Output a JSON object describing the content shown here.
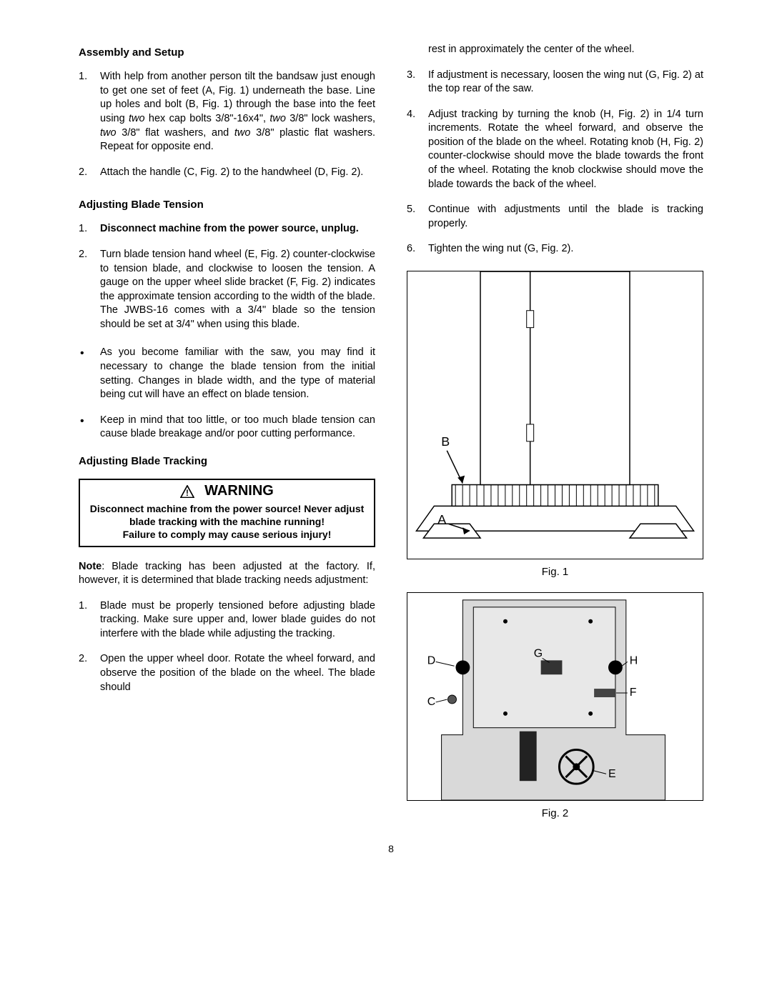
{
  "left": {
    "h1": "Assembly and Setup",
    "setup": [
      "With help from another person tilt the bandsaw just enough to get one set of feet (A, Fig. 1) underneath the base.  Line up holes and bolt (B, Fig. 1) through the base into the feet using <em>two</em> hex cap bolts 3/8\"-16x4\", <em>two</em> 3/8\" lock washers, <em>two</em> 3/8\" flat washers, and <em>two</em> 3/8\" plastic flat washers.  Repeat for opposite end.",
      "Attach the handle (C, Fig. 2) to the handwheel (D, Fig. 2)."
    ],
    "h2": "Adjusting Blade Tension",
    "tension_ol": [
      "<span class=\"bold\">Disconnect machine from the power source, unplug.</span>",
      "Turn blade tension hand wheel (E, Fig. 2) counter-clockwise to tension blade, and clockwise to loosen the tension.  A gauge on the upper wheel slide bracket (F, Fig. 2) indicates the approximate tension according to the width of the blade.  The JWBS-16 comes with a 3/4\" blade so the tension should be set at 3/4\" when using this blade."
    ],
    "tension_ul": [
      "As you become familiar with the saw, you may find it necessary to change the blade tension from the initial setting.  Changes in blade width, and the type of material being cut will have an effect on blade tension.",
      "Keep in mind that too little, or too much blade tension can cause blade breakage and/or poor cutting performance."
    ],
    "h3": "Adjusting Blade Tracking",
    "warning_title": "WARNING",
    "warning_body": "Disconnect machine from the power source! Never adjust blade tracking with the machine running!<br>Failure to comply may cause serious injury!",
    "note": "<span class=\"bold\">Note</span>: Blade tracking has been adjusted at the factory.  If, however, it is determined that blade tracking needs adjustment:",
    "tracking_ol_left": [
      "Blade must be properly tensioned before adjusting blade tracking.  Make sure upper and, lower blade guides do not interfere with the blade while adjusting the tracking.",
      "Open the upper wheel door.  Rotate the wheel forward, and observe the position of the blade on the wheel.  The blade should"
    ]
  },
  "right": {
    "cont": "rest in approximately the center of the wheel.",
    "tracking_ol_right": [
      "If adjustment is necessary, loosen the wing nut (G, Fig. 2) at the top rear of the saw.",
      "Adjust tracking by turning the knob (H, Fig. 2) in 1/4 turn increments.   Rotate the wheel forward, and observe the position of the blade on the wheel.  Rotating knob (H, Fig. 2) counter-clockwise should move the blade towards the front of the wheel.  Rotating the knob clockwise should move the blade towards the back of the wheel.",
      "Continue with adjustments until the blade is tracking properly.",
      "Tighten the wing nut (G, Fig. 2)."
    ],
    "fig1_label": "Fig. 1",
    "fig2_label": "Fig. 2",
    "fig1_B": "B",
    "fig1_A": "A",
    "fig2_D": "D",
    "fig2_C": "C",
    "fig2_G": "G",
    "fig2_H": "H",
    "fig2_F": "F",
    "fig2_E": "E"
  },
  "page": "8"
}
